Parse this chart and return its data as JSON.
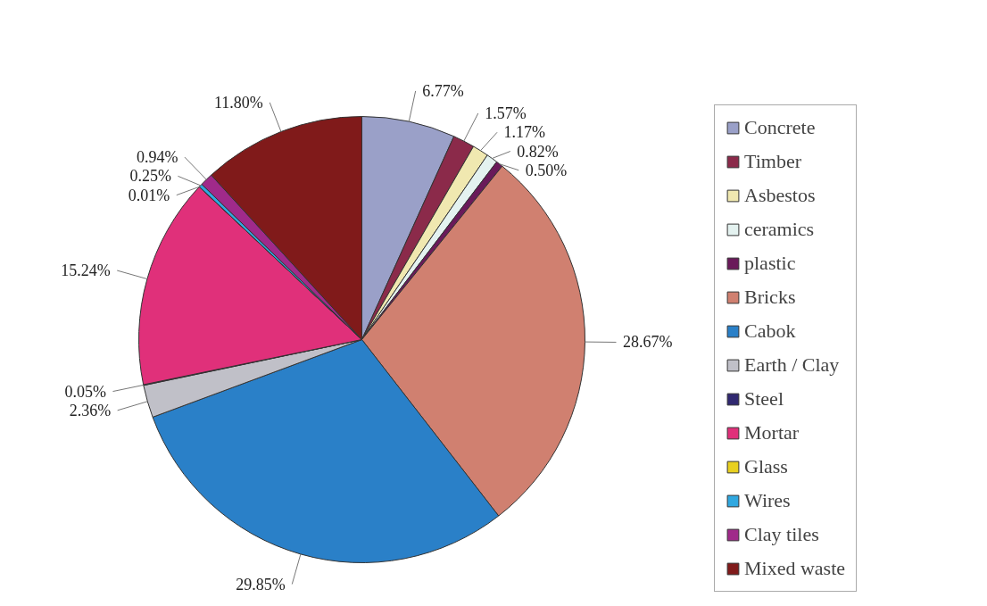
{
  "chart_data": {
    "type": "pie",
    "categories": [
      "Concrete",
      "Timber",
      "Asbestos",
      "ceramics",
      "plastic",
      "Bricks",
      "Cabok",
      "Earth / Clay",
      "Steel",
      "Mortar",
      "Glass",
      "Wires",
      "Clay tiles",
      "Mixed waste"
    ],
    "values": [
      6.77,
      1.57,
      1.17,
      0.82,
      0.5,
      28.67,
      29.85,
      2.36,
      0.05,
      15.24,
      0.01,
      0.25,
      0.94,
      11.8
    ],
    "value_labels": [
      "6.77%",
      "1.57%",
      "1.17%",
      "0.82%",
      "0.50%",
      "28.67%",
      "29.85%",
      "2.36%",
      "0.05%",
      "15.24%",
      "0.01%",
      "0.25%",
      "0.94%",
      "11.80%"
    ],
    "colors": [
      "#9aa0c8",
      "#8b2a4a",
      "#f0e8b0",
      "#e4f2f0",
      "#6a1a5a",
      "#d08070",
      "#2a80c8",
      "#c0c0c8",
      "#302870",
      "#e0307a",
      "#e8d020",
      "#30a8e0",
      "#a02a8a",
      "#801a1a"
    ],
    "legend": "right"
  }
}
